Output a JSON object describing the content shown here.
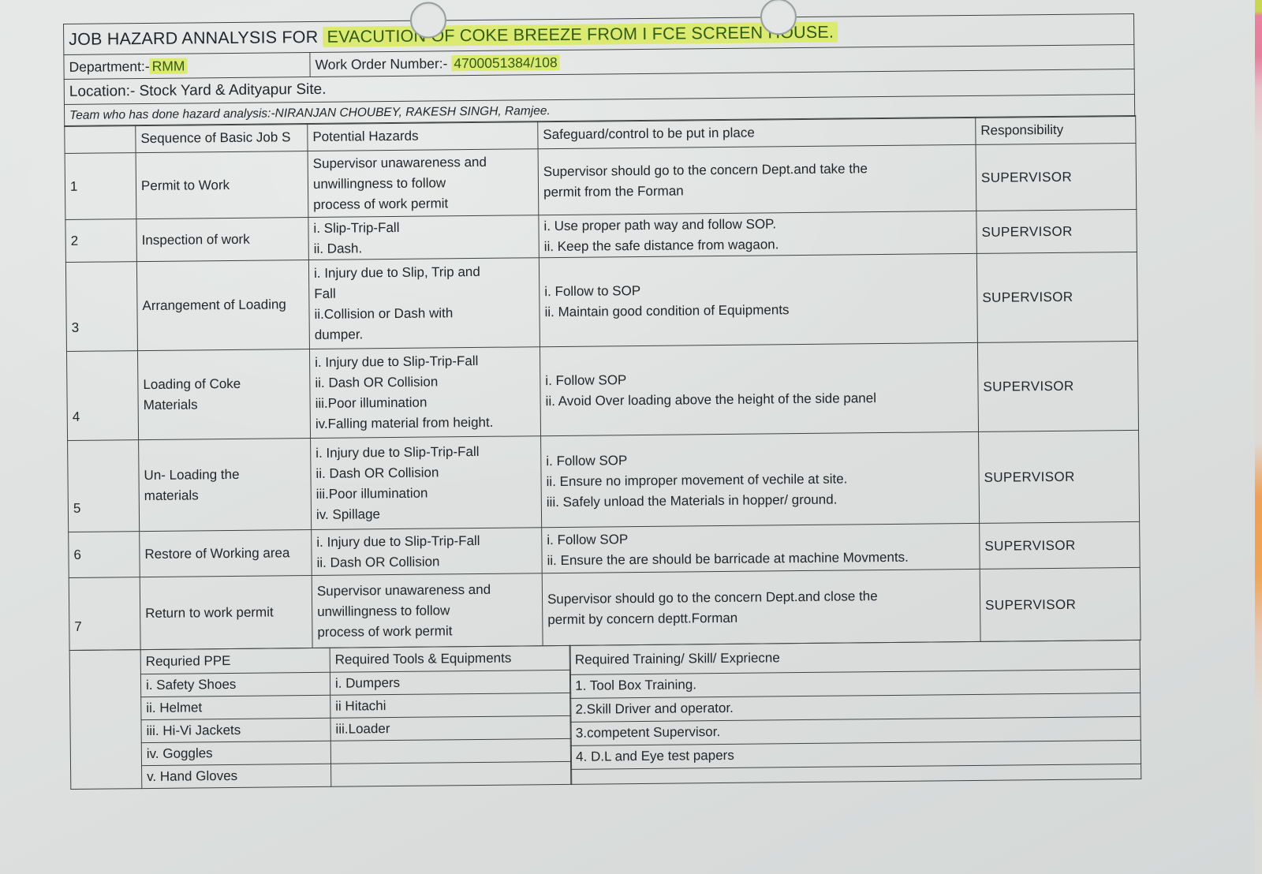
{
  "page": {
    "title_prefix": "JOB HAZARD ANNALYSIS FOR",
    "title_highlight": "EVACUTION OF COKE BREEZE FROM I FCE  SCREEN HOUSE.",
    "department_label": "Department:-",
    "department_value": "RMM",
    "work_order_label": "Work Order Number:-",
    "work_order_value": "4700051384/108",
    "location": "Location:- Stock Yard & Adityapur Site.",
    "team": "Team who has done hazard analysis:-NIRANJAN CHOUBEY, RAKESH SINGH, Ramjee."
  },
  "main_table": {
    "headers": [
      "",
      "Sequence of Basic Job S",
      "Potential Hazards",
      "Safeguard/control to be put in place",
      "Responsibility"
    ],
    "rows": [
      {
        "num": "1",
        "step": [
          "Permit to Work"
        ],
        "hazards": [
          "Supervisor unawareness and",
          "unwillingness to follow",
          "process of work permit"
        ],
        "safeguards": [
          "Supervisor should  go to the concern Dept.and take the",
          "permit from the Forman"
        ],
        "responsibility": "SUPERVISOR"
      },
      {
        "num": "2",
        "step": [
          "Inspection  of work"
        ],
        "hazards": [
          "i. Slip-Trip-Fall",
          "ii. Dash."
        ],
        "safeguards": [
          "i.  Use proper path way and follow SOP.",
          "ii. Keep the safe distance from wagaon."
        ],
        "responsibility": "SUPERVISOR"
      },
      {
        "num": "3",
        "step": [
          "Arrangement of Loading"
        ],
        "hazards": [
          "i. Injury due to  Slip, Trip and",
          "Fall",
          "ii.Collision or Dash with",
          "dumper."
        ],
        "safeguards": [
          "i. Follow to SOP",
          "ii. Maintain good condition of Equipments"
        ],
        "responsibility": "SUPERVISOR"
      },
      {
        "num": "4",
        "step": [
          "Loading of Coke",
          "Materials"
        ],
        "hazards": [
          "i. Injury due to  Slip-Trip-Fall",
          "ii. Dash OR Collision",
          "iii.Poor illumination",
          "iv.Falling material from height."
        ],
        "safeguards": [
          "i. Follow SOP",
          "ii. Avoid Over loading above the height of the side panel"
        ],
        "responsibility": "SUPERVISOR"
      },
      {
        "num": "5",
        "step": [
          "Un- Loading the",
          "materials"
        ],
        "hazards": [
          "i. Injury due to  Slip-Trip-Fall",
          "ii. Dash OR Collision",
          "iii.Poor illumination",
          "iv. Spillage"
        ],
        "safeguards": [
          "i. Follow SOP",
          "ii. Ensure no improper movement of vechile at site.",
          "iii. Safely unload the Materials in hopper/ ground."
        ],
        "responsibility": "SUPERVISOR"
      },
      {
        "num": "6",
        "step": [
          "Restore of Working area"
        ],
        "hazards": [
          "i. Injury due to  Slip-Trip-Fall",
          "ii. Dash OR Collision"
        ],
        "safeguards": [
          "i. Follow SOP",
          "ii. Ensure the are should be barricade at machine Movments."
        ],
        "responsibility": "SUPERVISOR"
      },
      {
        "num": "7",
        "step": [
          "Return to work permit"
        ],
        "hazards": [
          "Supervisor unawareness and",
          "unwillingness to follow",
          "process of work permit"
        ],
        "safeguards": [
          "Supervisor should go to the concern Dept.and close the",
          "permit by concern deptt.Forman"
        ],
        "responsibility": "SUPERVISOR"
      }
    ]
  },
  "bottom_table": {
    "ppe_header": "Requried PPE",
    "tools_header": "Required Tools & Equipments",
    "training_header": "Required Training/ Skill/ Expriecne",
    "ppe": [
      "i. Safety Shoes",
      "ii. Helmet",
      "iii. Hi-Vi Jackets",
      "iv. Goggles",
      "v.  Hand Gloves"
    ],
    "tools": [
      "i. Dumpers",
      "ii Hitachi",
      "iii.Loader",
      "",
      ""
    ],
    "training": [
      "1. Tool Box Training.",
      "2.Skill Driver and operator.",
      "3.competent Supervisor.",
      "4. D.L and Eye test papers",
      ""
    ]
  },
  "colors": {
    "paper": "#dfe2e1",
    "table_line": "#3f4343",
    "ink": "#23272a",
    "highlight_bg": "#dcea72",
    "highlight_text": "#2e5c14",
    "edge_green": "#c9d750",
    "edge_pink": "#e8819e",
    "edge_orange": "#ef9f56"
  }
}
